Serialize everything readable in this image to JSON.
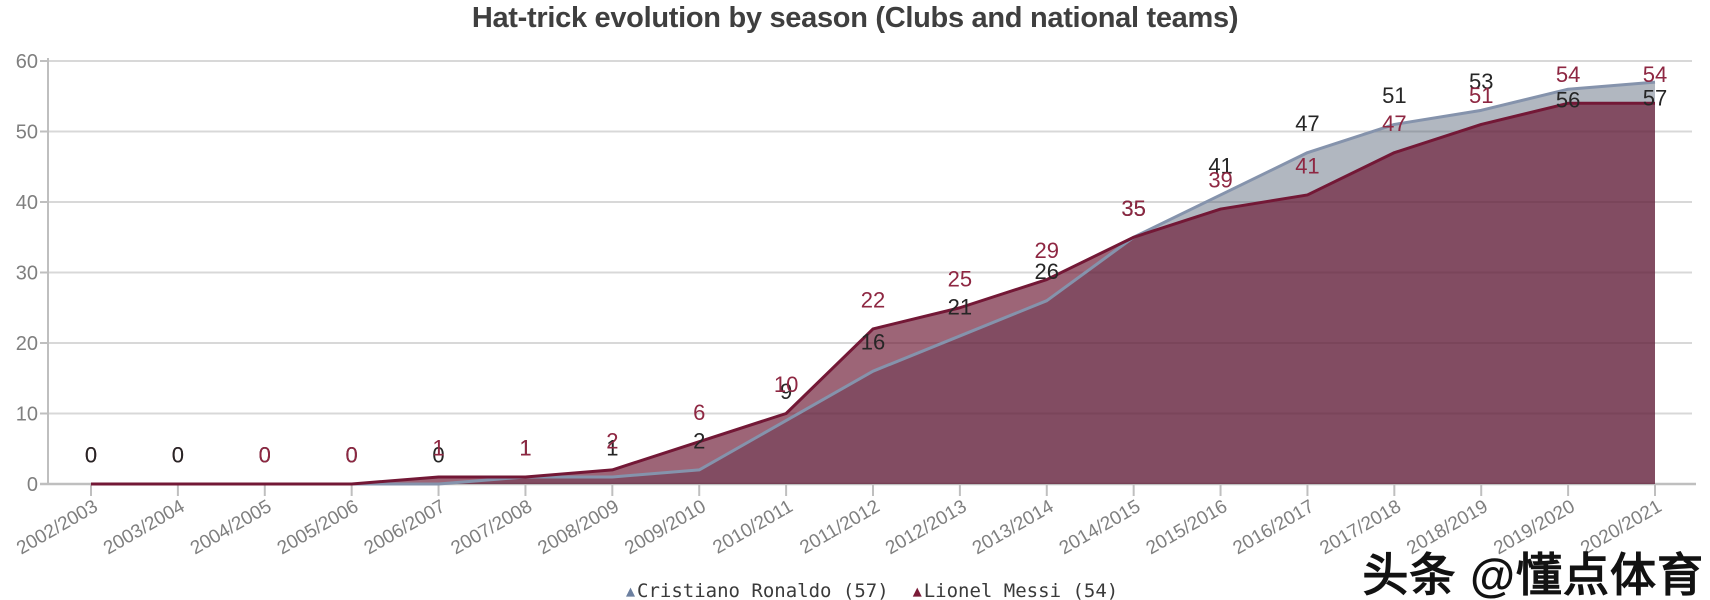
{
  "title": "Hat-trick evolution by season (Clubs and national teams)",
  "watermark": "头条 @懂点体育",
  "legend": {
    "marker": "▲",
    "items": [
      {
        "label": "Cristiano Ronaldo (57)",
        "color": "#6C80A0"
      },
      {
        "label": "Lionel Messi (54)",
        "color": "#7A1B38"
      }
    ]
  },
  "chart_data": {
    "type": "area",
    "title": "Hat-trick evolution by season (Clubs and national teams)",
    "categories": [
      "2002/2003",
      "2003/2004",
      "2004/2005",
      "2005/2006",
      "2006/2007",
      "2007/2008",
      "2008/2009",
      "2009/2010",
      "2010/2011",
      "2011/2012",
      "2012/2013",
      "2013/2014",
      "2014/2015",
      "2015/2016",
      "2016/2017",
      "2017/2018",
      "2018/2019",
      "2019/2020",
      "2020/2021"
    ],
    "series": [
      {
        "name": "Cristiano Ronaldo",
        "total": 57,
        "values": [
          0,
          0,
          0,
          0,
          0,
          1,
          1,
          2,
          9,
          16,
          21,
          26,
          35,
          41,
          47,
          51,
          53,
          56,
          57
        ],
        "line_color": "#8593AC",
        "fill_color": "rgba(68,84,106,0.42)",
        "label_color": "#262626",
        "marker_color": "#6C80A0"
      },
      {
        "name": "Lionel Messi",
        "total": 54,
        "values": [
          0,
          0,
          0,
          0,
          1,
          1,
          2,
          6,
          10,
          22,
          25,
          29,
          35,
          39,
          41,
          47,
          51,
          54,
          54
        ],
        "line_color": "#731836",
        "fill_color": "rgba(107,21,49,0.66)",
        "label_color": "#8E2742",
        "marker_color": "#7A1B38"
      }
    ],
    "ylim": [
      0,
      60
    ],
    "yticks": [
      0,
      10,
      20,
      30,
      40,
      50,
      60
    ],
    "grid": true,
    "legend_position": "bottom-center",
    "xlabel": "",
    "ylabel": "",
    "label_center_overrides": {
      "0": {
        "17": 100,
        "18": 98
      }
    },
    "black_label_on_top_seasons": [
      0,
      1
    ],
    "axis_color": "#BFBFBF",
    "grid_color": "#D8D8D8",
    "tick_label_color": "#7F7F7F",
    "data_label_font_px": 22,
    "tick_label_font_px": 20,
    "x_tick_label_font_px": 19
  }
}
